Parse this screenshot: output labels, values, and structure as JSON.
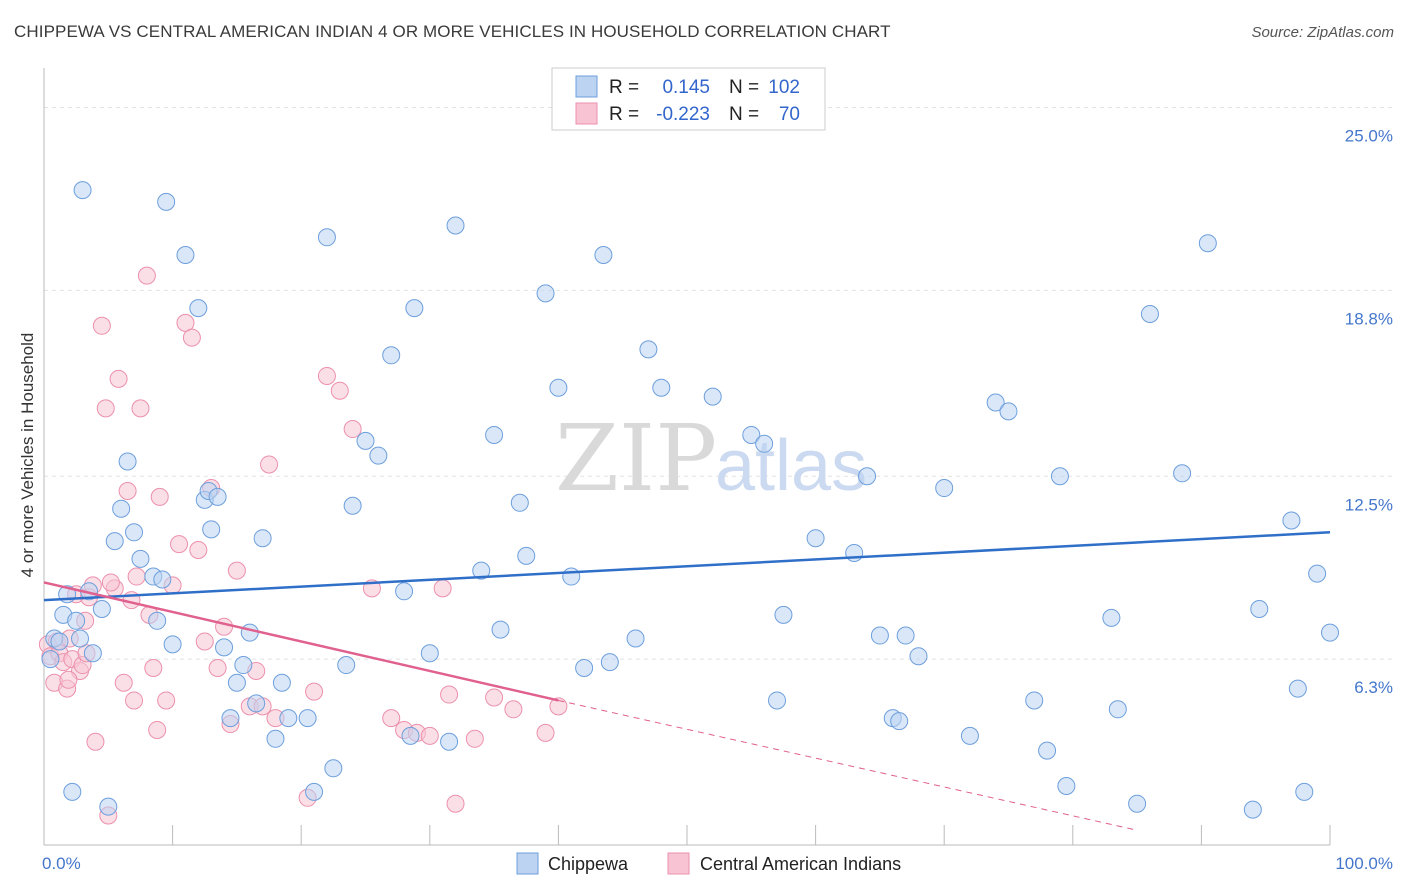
{
  "title": "CHIPPEWA VS CENTRAL AMERICAN INDIAN 4 OR MORE VEHICLES IN HOUSEHOLD CORRELATION CHART",
  "source": "Source: ZipAtlas.com",
  "watermark": {
    "zip": "ZIP",
    "atlas": "atlas"
  },
  "legend": {
    "rows": [
      {
        "r_label": "R =",
        "r_value": "0.145",
        "n_label": "N =",
        "n_value": "102"
      },
      {
        "r_label": "R =",
        "r_value": "-0.223",
        "n_label": "N =",
        "n_value": "70"
      }
    ]
  },
  "bottom_legend": [
    "Chippewa",
    "Central American Indians"
  ],
  "chart_data": {
    "type": "scatter",
    "title": "CHIPPEWA VS CENTRAL AMERICAN INDIAN 4 OR MORE VEHICLES IN HOUSEHOLD CORRELATION CHART",
    "xlabel": "",
    "ylabel": "4 or more Vehicles in Household",
    "xlim": [
      0,
      100
    ],
    "ylim": [
      0,
      26
    ],
    "x_tick_labels": [
      "0.0%",
      "100.0%"
    ],
    "y_ticks": [
      6.3,
      12.5,
      18.8,
      25.0
    ],
    "y_tick_labels": [
      "6.3%",
      "12.5%",
      "18.8%",
      "25.0%"
    ],
    "grid": true,
    "legend_placement": "top-center",
    "colors": {
      "chippewa": "#6d9fdc",
      "central": "#ec90ad",
      "chippewa_line": "#2f6fc8",
      "central_line": "#e0608e"
    },
    "series": [
      {
        "name": "Chippewa",
        "r": 0.145,
        "n": 102,
        "trend": {
          "x": [
            0,
            100
          ],
          "y": [
            8.3,
            10.6
          ]
        },
        "x": [
          0.5,
          0.8,
          1.5,
          1.8,
          2.5,
          2.8,
          3.5,
          3.8,
          4.5,
          5.5,
          6.0,
          6.5,
          7.0,
          7.5,
          8.5,
          8.8,
          9.2,
          10.0,
          12.0,
          12.5,
          12.8,
          13.0,
          13.5,
          14.0,
          14.5,
          15.0,
          15.5,
          16.0,
          16.5,
          18.0,
          18.5,
          19.0,
          20.5,
          22.0,
          22.5,
          23.5,
          24.0,
          25.0,
          26.0,
          27.0,
          28.0,
          28.5,
          28.8,
          31.5,
          32.0,
          34.0,
          35.0,
          35.5,
          37.0,
          37.5,
          39.0,
          40.0,
          41.0,
          42.0,
          43.5,
          47.0,
          48.0,
          52.0,
          55.0,
          56.0,
          57.0,
          57.5,
          60.0,
          63.0,
          64.0,
          65.0,
          66.0,
          66.5,
          67.0,
          68.0,
          70.0,
          72.0,
          74.0,
          75.0,
          77.0,
          78.0,
          79.0,
          79.5,
          83.0,
          83.5,
          85.0,
          86.0,
          88.5,
          90.5,
          94.0,
          94.5,
          97.0,
          97.5,
          98.0,
          99.0,
          100.0,
          1.2,
          2.2,
          3.0,
          5.0,
          9.5,
          11.0,
          17.0,
          21.0,
          30.0,
          44.0,
          46.0
        ],
        "y": [
          6.3,
          7.0,
          7.8,
          8.5,
          7.6,
          7.0,
          8.6,
          6.5,
          8.0,
          10.3,
          11.4,
          13.0,
          10.6,
          9.7,
          9.1,
          7.6,
          9.0,
          6.8,
          18.2,
          11.7,
          12.0,
          10.7,
          11.8,
          6.7,
          4.3,
          5.5,
          6.1,
          7.2,
          4.8,
          3.6,
          5.5,
          4.3,
          4.3,
          20.6,
          2.6,
          6.1,
          11.5,
          13.7,
          13.2,
          16.6,
          8.6,
          3.7,
          18.2,
          3.5,
          21.0,
          9.3,
          13.9,
          7.3,
          11.6,
          9.8,
          18.7,
          15.5,
          9.1,
          6.0,
          20.0,
          16.8,
          15.5,
          15.2,
          13.9,
          13.6,
          4.9,
          7.8,
          10.4,
          9.9,
          12.5,
          7.1,
          4.3,
          4.2,
          7.1,
          6.4,
          12.1,
          3.7,
          15.0,
          14.7,
          4.9,
          3.2,
          12.5,
          2.0,
          7.7,
          4.6,
          1.4,
          18.0,
          12.6,
          20.4,
          1.2,
          8.0,
          11.0,
          5.3,
          1.8,
          9.2,
          7.2,
          6.9,
          1.8,
          22.2,
          1.3,
          21.8,
          20.0,
          10.4,
          1.8,
          6.5,
          6.2,
          7.0
        ],
        "y_note_unused": ""
      },
      {
        "name": "Central American Indians",
        "r": -0.223,
        "n": 70,
        "trend": {
          "x": [
            0,
            40
          ],
          "y": [
            8.9,
            4.9
          ]
        },
        "trend_dash": {
          "x": [
            40,
            85
          ],
          "y": [
            4.9,
            0.5
          ]
        },
        "x": [
          0.3,
          0.5,
          0.8,
          1.0,
          1.2,
          1.5,
          1.8,
          2.0,
          2.2,
          2.5,
          2.8,
          3.0,
          3.2,
          3.5,
          3.8,
          4.0,
          4.5,
          4.8,
          5.0,
          5.5,
          5.8,
          6.2,
          6.5,
          6.8,
          7.0,
          7.2,
          7.5,
          8.0,
          8.2,
          8.5,
          8.8,
          9.0,
          9.5,
          10.0,
          10.5,
          11.0,
          11.5,
          12.0,
          12.5,
          13.0,
          13.5,
          14.0,
          14.5,
          15.0,
          16.0,
          16.5,
          17.0,
          17.5,
          18.0,
          20.5,
          21.0,
          22.0,
          23.0,
          24.0,
          25.5,
          27.0,
          28.0,
          29.0,
          30.0,
          31.0,
          31.5,
          32.0,
          33.5,
          35.0,
          36.5,
          39.0,
          40.0,
          5.2,
          3.3,
          1.9
        ],
        "y": [
          6.8,
          6.4,
          5.5,
          6.9,
          6.5,
          6.2,
          5.3,
          7.0,
          6.3,
          8.5,
          5.9,
          6.1,
          7.6,
          8.4,
          8.8,
          3.5,
          17.6,
          14.8,
          1.0,
          8.7,
          15.8,
          5.5,
          12.0,
          8.3,
          4.9,
          9.1,
          14.8,
          19.3,
          7.8,
          6.0,
          3.9,
          11.8,
          4.9,
          8.8,
          10.2,
          17.7,
          17.2,
          10.0,
          6.9,
          12.1,
          6.0,
          7.4,
          4.1,
          9.3,
          4.7,
          5.9,
          4.7,
          12.9,
          4.3,
          1.6,
          5.2,
          15.9,
          15.4,
          14.1,
          8.7,
          4.3,
          3.9,
          3.8,
          3.7,
          8.7,
          5.1,
          1.4,
          3.6,
          5.0,
          4.6,
          3.8,
          4.7,
          8.9,
          6.5,
          5.6
        ]
      }
    ]
  }
}
